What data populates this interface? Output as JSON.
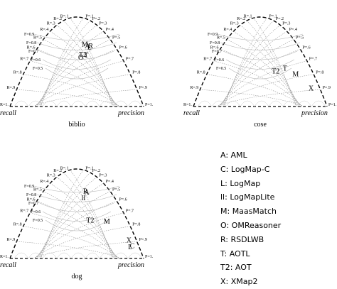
{
  "chart_data": [
    {
      "type": "scatter",
      "name": "biblio",
      "xlabel": "recall",
      "ylabel": "precision",
      "points": [
        {
          "label": "A",
          "recall": 0.62,
          "precision": 0.78
        },
        {
          "label": "M",
          "recall": 0.64,
          "precision": 0.76
        },
        {
          "label": "L",
          "recall": 0.61,
          "precision": 0.8
        },
        {
          "label": "R",
          "recall": 0.62,
          "precision": 0.83
        },
        {
          "label": "T",
          "recall": 0.52,
          "precision": 0.66
        },
        {
          "label": "T2",
          "recall": 0.53,
          "precision": 0.62
        },
        {
          "label": "O",
          "recall": 0.5,
          "precision": 0.56
        }
      ]
    },
    {
      "type": "scatter",
      "name": "cose",
      "xlabel": "recall",
      "ylabel": "precision",
      "points": [
        {
          "label": "T",
          "recall": 0.38,
          "precision": 0.75
        },
        {
          "label": "T2",
          "recall": 0.35,
          "precision": 0.58
        },
        {
          "label": "M",
          "recall": 0.32,
          "precision": 0.85
        },
        {
          "label": "X",
          "recall": 0.17,
          "precision": 0.93
        }
      ]
    },
    {
      "type": "scatter",
      "name": "dog",
      "xlabel": "recall",
      "ylabel": "precision",
      "points": [
        {
          "label": "A",
          "recall": 0.68,
          "precision": 0.83
        },
        {
          "label": "R",
          "recall": 0.69,
          "precision": 0.82
        },
        {
          "label": "ll",
          "recall": 0.62,
          "precision": 0.72
        },
        {
          "label": "T2",
          "recall": 0.38,
          "precision": 0.58
        },
        {
          "label": "M",
          "recall": 0.37,
          "precision": 0.82
        },
        {
          "label": "X",
          "recall": 0.17,
          "precision": 0.95
        },
        {
          "label": "C",
          "recall": 0.11,
          "precision": 0.94
        },
        {
          "label": "L",
          "recall": 0.1,
          "precision": 0.9
        }
      ]
    }
  ],
  "iso_labels": {
    "r": [
      "R=1.",
      "R=.9",
      "R=.8",
      "R=.7",
      "R=.6",
      "R=.5",
      "R=.4",
      "R=.3",
      "R=.2",
      "R=.1"
    ],
    "p": [
      "P=1.",
      "P=.9",
      "P=.8",
      "P=.7",
      "P=.6",
      "P=.5",
      "P=.4",
      "P=.3",
      "P=.2",
      "P=.1"
    ],
    "f": [
      "F=0.9",
      "F=0.8",
      "F=0.7",
      "F=0.6",
      "F=0.5"
    ]
  },
  "legend": [
    "A: AML",
    "C: LogMap-C",
    "L: LogMap",
    "ll: LogMapLite",
    "M: MaasMatch",
    "O: OMReasoner",
    "R: RSDLWB",
    "T: AOTL",
    "T2: AOT",
    "X: XMap2"
  ],
  "style": {
    "dashed_border": "#000000",
    "guide_lines": "#9a9a9a"
  }
}
